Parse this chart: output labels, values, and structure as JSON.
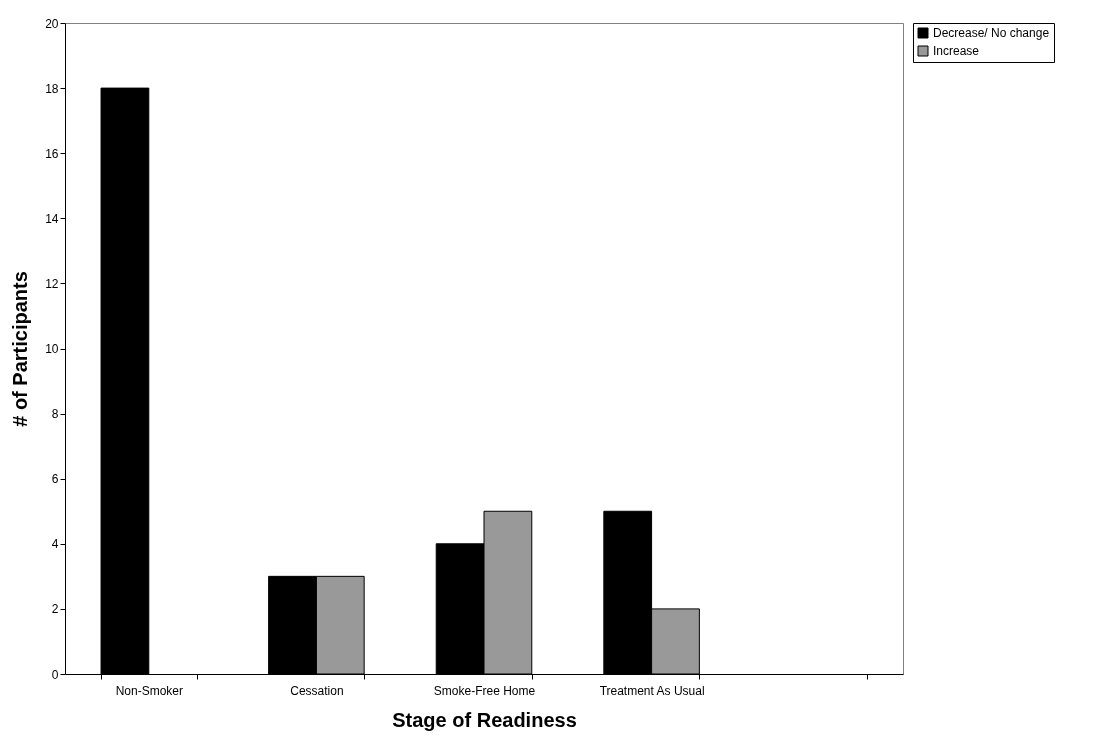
{
  "chart_data": {
    "type": "bar",
    "xlabel": "Stage of Readiness",
    "ylabel": "# of Participants",
    "categories": [
      "Non-Smoker",
      "Cessation",
      "Smoke-Free Home",
      "Treatment As Usual",
      null
    ],
    "series": [
      {
        "name": "Decrease/ No change",
        "color": "#000000",
        "values": [
          18,
          3,
          4,
          5,
          null
        ]
      },
      {
        "name": "Increase",
        "color": "#999999",
        "values": [
          null,
          3,
          5,
          2,
          null
        ]
      }
    ],
    "ylim": [
      0,
      20
    ],
    "yticks": [
      0,
      2,
      4,
      6,
      8,
      10,
      12,
      14,
      16,
      18,
      20
    ],
    "grid": false,
    "legend": "right"
  }
}
